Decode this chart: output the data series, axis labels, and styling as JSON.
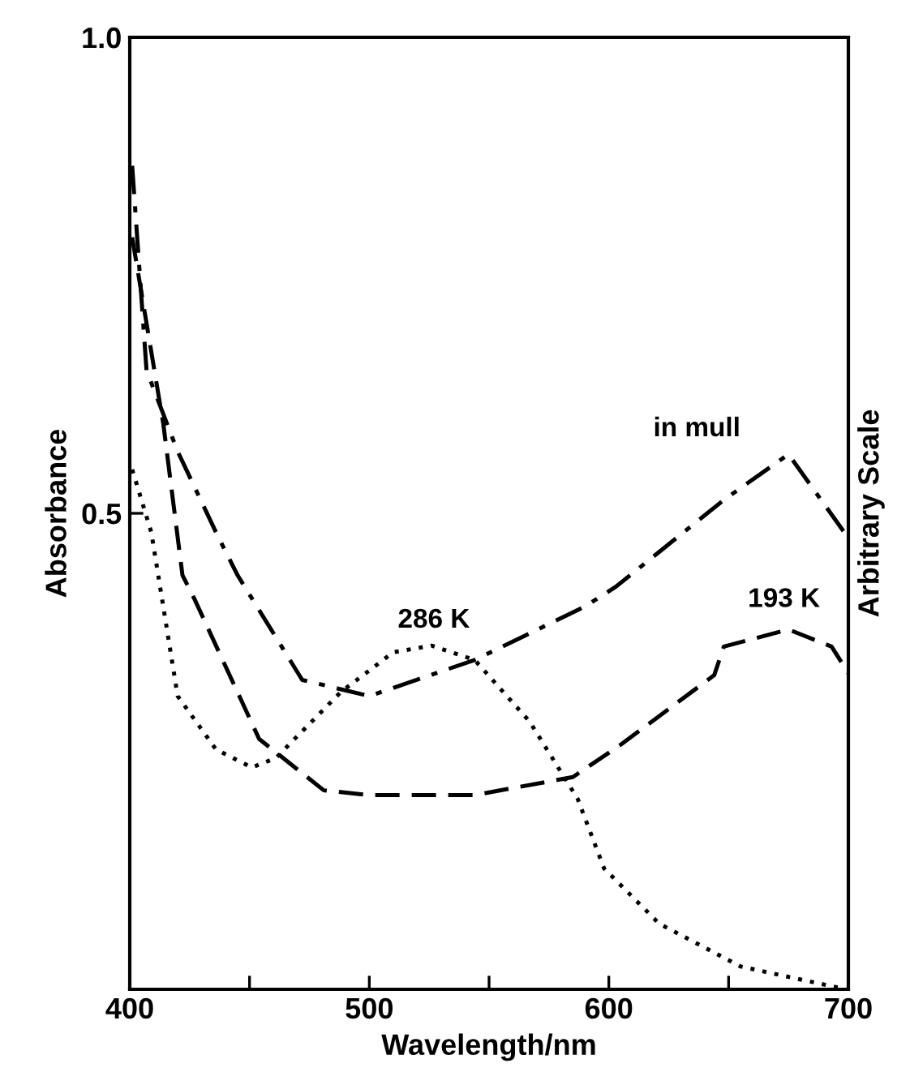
{
  "chart_data": {
    "type": "line",
    "xlabel": "Wavelength/nm",
    "ylabel": "Absorbance",
    "y2label": "Arbitrary Scale",
    "xlim": [
      400,
      700
    ],
    "ylim": [
      0,
      1.0
    ],
    "xticks": [
      400,
      {
        "value": 450,
        "label": null
      },
      500,
      {
        "value": 550,
        "label": null
      },
      600,
      {
        "value": 650,
        "label": null
      },
      700
    ],
    "yticks": [
      {
        "value": 0.5,
        "label": "0.5"
      },
      {
        "value": 1.0,
        "label": "1.0"
      }
    ],
    "grid": false,
    "legend": false,
    "marker": "none",
    "series": [
      {
        "name": "286 K",
        "color": "#000000",
        "line_style": "dotted",
        "x": [
          401,
          409,
          420,
          436,
          451,
          461,
          488,
          510,
          526,
          544,
          567,
          587,
          598,
          621,
          655,
          699
        ],
        "values": [
          0.546,
          0.48,
          0.308,
          0.252,
          0.233,
          0.243,
          0.312,
          0.354,
          0.361,
          0.346,
          0.281,
          0.2,
          0.127,
          0.069,
          0.024,
          0.0
        ]
      },
      {
        "name": "193 K",
        "color": "#000000",
        "line_style": "dashed",
        "x": [
          401,
          414,
          422,
          427,
          454,
          481,
          500,
          544,
          585,
          605,
          644,
          648,
          675,
          693,
          700
        ],
        "values": [
          0.79,
          0.594,
          0.435,
          0.41,
          0.263,
          0.209,
          0.204,
          0.204,
          0.223,
          0.257,
          0.33,
          0.36,
          0.378,
          0.36,
          0.332
        ]
      },
      {
        "name": "in mull",
        "color": "#000000",
        "line_style": "dashdot",
        "x": [
          401,
          407,
          420,
          436,
          445,
          472,
          500,
          544,
          590,
          603,
          648,
          675,
          700
        ],
        "values": [
          0.865,
          0.65,
          0.565,
          0.48,
          0.435,
          0.325,
          0.308,
          0.346,
          0.402,
          0.423,
          0.514,
          0.562,
          0.474
        ]
      }
    ]
  }
}
